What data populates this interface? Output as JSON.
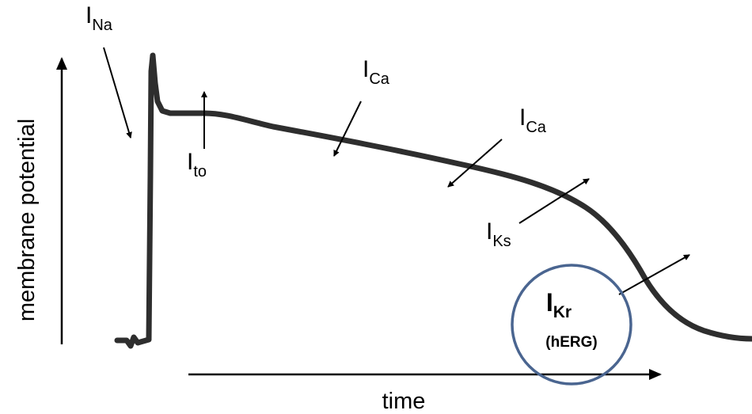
{
  "axes": {
    "y_label": "membrane potential",
    "x_label": "time"
  },
  "currents": {
    "na": {
      "main": "I",
      "sub": "Na"
    },
    "to": {
      "main": "I",
      "sub": "to"
    },
    "ca1": {
      "main": "I",
      "sub": "Ca"
    },
    "ca2": {
      "main": "I",
      "sub": "Ca"
    },
    "ks": {
      "main": "I",
      "sub": "Ks"
    },
    "kr": {
      "main": "I",
      "sub": "Kr",
      "note": "(hERG)"
    }
  },
  "colors": {
    "trace": "#2e2e2e",
    "arrow": "#000000",
    "circle": "#4a6590"
  }
}
